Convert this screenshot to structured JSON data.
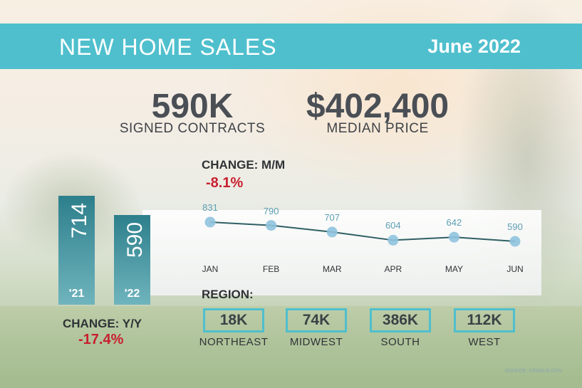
{
  "banner": {
    "title": "NEW HOME SALES",
    "date": "June 2022"
  },
  "stats": {
    "contracts": {
      "value": "590K",
      "label": "SIGNED CONTRACTS"
    },
    "price": {
      "value": "$402,400",
      "label": "MEDIAN PRICE"
    }
  },
  "changes": {
    "mm_label": "CHANGE: M/M",
    "mm_value": "-8.1%",
    "yy_label": "CHANGE: Y/Y",
    "yy_value": "-17.4%"
  },
  "region": {
    "heading": "REGION:",
    "items": [
      {
        "value": "18K",
        "name": "NORTHEAST"
      },
      {
        "value": "74K",
        "name": "MIDWEST"
      },
      {
        "value": "386K",
        "name": "SOUTH"
      },
      {
        "value": "112K",
        "name": "WEST"
      }
    ]
  },
  "source": "SOURCE: CENSUS.GOV",
  "colors": {
    "accent": "#4fbfcd",
    "negative": "#c8202f",
    "bar": "#2d7f8c",
    "point": "#8fc3de",
    "line": "#2f5f63"
  },
  "chart_data": [
    {
      "type": "bar",
      "categories": [
        "'21",
        "'22"
      ],
      "values": [
        714,
        590
      ],
      "title": "",
      "xlabel": "",
      "ylabel": ""
    },
    {
      "type": "line",
      "categories": [
        "JAN",
        "FEB",
        "MAR",
        "APR",
        "MAY",
        "JUN"
      ],
      "values": [
        831,
        790,
        707,
        604,
        642,
        590
      ],
      "title": "",
      "xlabel": "",
      "ylabel": ""
    }
  ]
}
